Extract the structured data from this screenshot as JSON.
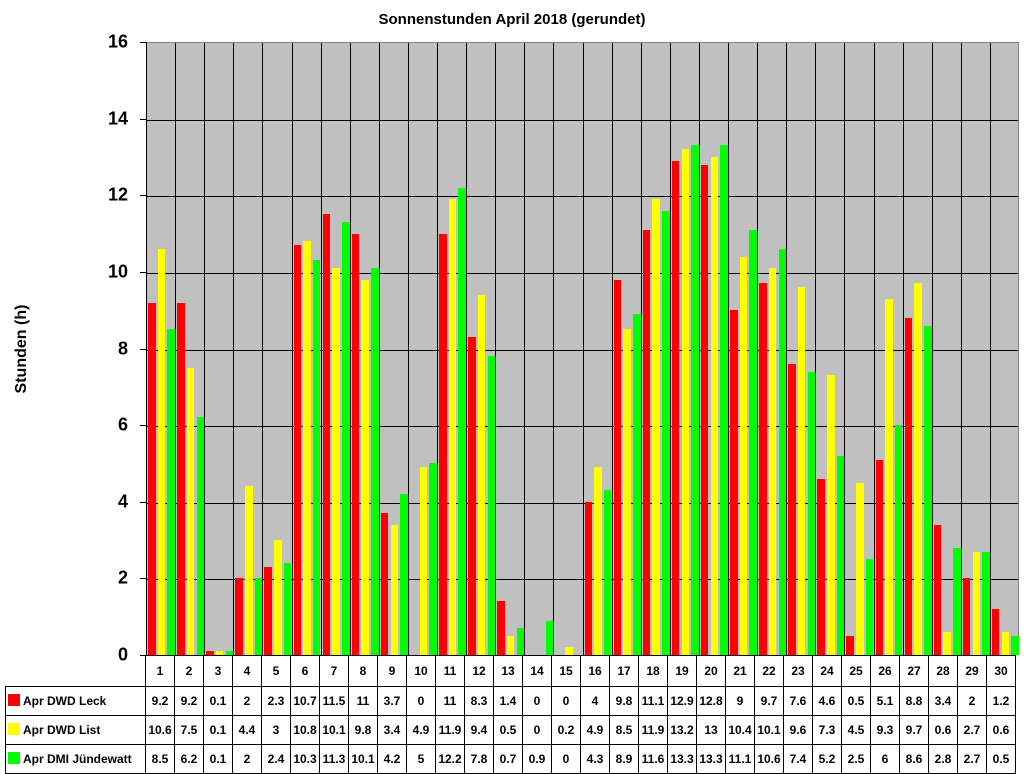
{
  "chart_data": {
    "type": "bar",
    "title": "Sonnenstunden April 2018 (gerundet)",
    "xlabel": "",
    "ylabel": "Stunden (h)",
    "ylim": [
      0,
      16
    ],
    "yticks": [
      0,
      2,
      4,
      6,
      8,
      10,
      12,
      14,
      16
    ],
    "grid": true,
    "legend_position": "data-table-bottom",
    "categories": [
      "1",
      "2",
      "3",
      "4",
      "5",
      "6",
      "7",
      "8",
      "9",
      "10",
      "11",
      "12",
      "13",
      "14",
      "15",
      "16",
      "17",
      "18",
      "19",
      "20",
      "21",
      "22",
      "23",
      "24",
      "25",
      "26",
      "27",
      "28",
      "29",
      "30"
    ],
    "series": [
      {
        "name": "Apr DWD Leck",
        "color": "#ff0000",
        "values": [
          9.2,
          9.2,
          0.1,
          2,
          2.3,
          10.7,
          11.5,
          11,
          3.7,
          0,
          11,
          8.3,
          1.4,
          0,
          0,
          4,
          9.8,
          11.1,
          12.9,
          12.8,
          9,
          9.7,
          7.6,
          4.6,
          0.5,
          5.1,
          8.8,
          3.4,
          2,
          1.2
        ]
      },
      {
        "name": "Apr DWD List",
        "color": "#ffff00",
        "values": [
          10.6,
          7.5,
          0.1,
          4.4,
          3,
          10.8,
          10.1,
          9.8,
          3.4,
          4.9,
          11.9,
          9.4,
          0.5,
          0,
          0.2,
          4.9,
          8.5,
          11.9,
          13.2,
          13,
          10.4,
          10.1,
          9.6,
          7.3,
          4.5,
          9.3,
          9.7,
          0.6,
          2.7,
          0.6
        ]
      },
      {
        "name": "Apr DMI Jündewatt",
        "color": "#00ff00",
        "values": [
          8.5,
          6.2,
          0.1,
          2,
          2.4,
          10.3,
          11.3,
          10.1,
          4.2,
          5,
          12.2,
          7.8,
          0.7,
          0.9,
          0,
          4.3,
          8.9,
          11.6,
          13.3,
          13.3,
          11.1,
          10.6,
          7.4,
          5.2,
          2.5,
          6,
          8.6,
          2.8,
          2.7,
          0.5
        ]
      }
    ]
  },
  "colors": {
    "plot_background": "#c0c0c0"
  }
}
